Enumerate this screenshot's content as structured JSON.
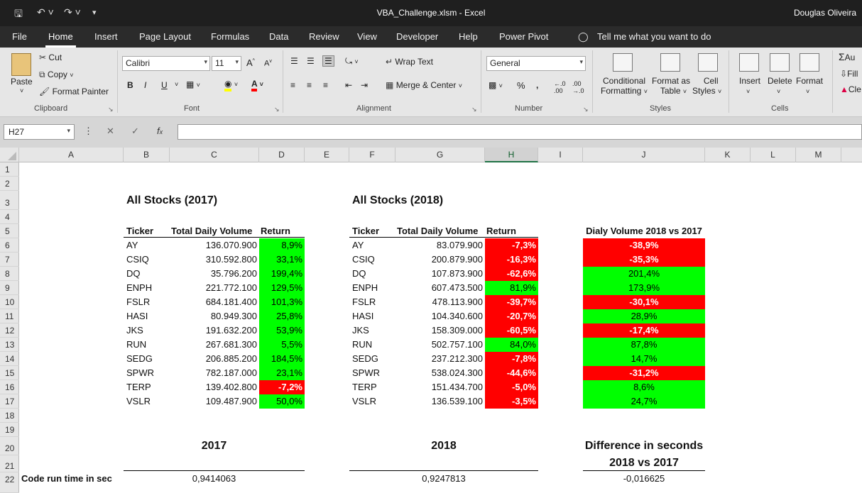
{
  "window": {
    "title": "VBA_Challenge.xlsm  -  Excel",
    "user": "Douglas Oliveira"
  },
  "menu": [
    "File",
    "Home",
    "Insert",
    "Page Layout",
    "Formulas",
    "Data",
    "Review",
    "View",
    "Developer",
    "Help",
    "Power Pivot"
  ],
  "tell_me": "Tell me what you want to do",
  "ribbon": {
    "clipboard": {
      "label": "Clipboard",
      "paste": "Paste",
      "cut": "Cut",
      "copy": "Copy",
      "format_painter": "Format Painter"
    },
    "font": {
      "label": "Font",
      "name": "Calibri",
      "size": "11"
    },
    "alignment": {
      "label": "Alignment",
      "wrap": "Wrap Text",
      "merge": "Merge & Center"
    },
    "number": {
      "label": "Number",
      "format": "General"
    },
    "styles": {
      "label": "Styles",
      "conditional": "Conditional",
      "conditional2": "Formatting",
      "format_as": "Format as",
      "format_as2": "Table",
      "cell": "Cell",
      "cell2": "Styles"
    },
    "cells": {
      "label": "Cells",
      "insert": "Insert",
      "delete": "Delete",
      "format": "Format"
    },
    "editing": {
      "auto": "Au",
      "fill": "Fill",
      "clear": "Cle"
    }
  },
  "namebox": "H27",
  "columns": [
    "A",
    "B",
    "C",
    "D",
    "E",
    "F",
    "G",
    "H",
    "I",
    "J",
    "K",
    "L",
    "M"
  ],
  "rows": [
    "1",
    "2",
    "3",
    "4",
    "5",
    "6",
    "7",
    "8",
    "9",
    "10",
    "11",
    "12",
    "13",
    "14",
    "15",
    "16",
    "17",
    "18",
    "19",
    "20",
    "21",
    "22"
  ],
  "sheet": {
    "title2017": "All Stocks (2017)",
    "title2018": "All Stocks (2018)",
    "headers": {
      "ticker": "Ticker",
      "volume": "Total Daily Volume",
      "return": "Return",
      "diff": "Dialy Volume 2018 vs 2017"
    },
    "rows2017": [
      {
        "ticker": "AY",
        "volume": "136.070.900",
        "ret": "8,9%",
        "pos": true
      },
      {
        "ticker": "CSIQ",
        "volume": "310.592.800",
        "ret": "33,1%",
        "pos": true
      },
      {
        "ticker": "DQ",
        "volume": "35.796.200",
        "ret": "199,4%",
        "pos": true
      },
      {
        "ticker": "ENPH",
        "volume": "221.772.100",
        "ret": "129,5%",
        "pos": true
      },
      {
        "ticker": "FSLR",
        "volume": "684.181.400",
        "ret": "101,3%",
        "pos": true
      },
      {
        "ticker": "HASI",
        "volume": "80.949.300",
        "ret": "25,8%",
        "pos": true
      },
      {
        "ticker": "JKS",
        "volume": "191.632.200",
        "ret": "53,9%",
        "pos": true
      },
      {
        "ticker": "RUN",
        "volume": "267.681.300",
        "ret": "5,5%",
        "pos": true
      },
      {
        "ticker": "SEDG",
        "volume": "206.885.200",
        "ret": "184,5%",
        "pos": true
      },
      {
        "ticker": "SPWR",
        "volume": "782.187.000",
        "ret": "23,1%",
        "pos": true
      },
      {
        "ticker": "TERP",
        "volume": "139.402.800",
        "ret": "-7,2%",
        "pos": false
      },
      {
        "ticker": "VSLR",
        "volume": "109.487.900",
        "ret": "50,0%",
        "pos": true
      }
    ],
    "rows2018": [
      {
        "ticker": "AY",
        "volume": "83.079.900",
        "ret": "-7,3%",
        "pos": false
      },
      {
        "ticker": "CSIQ",
        "volume": "200.879.900",
        "ret": "-16,3%",
        "pos": false
      },
      {
        "ticker": "DQ",
        "volume": "107.873.900",
        "ret": "-62,6%",
        "pos": false
      },
      {
        "ticker": "ENPH",
        "volume": "607.473.500",
        "ret": "81,9%",
        "pos": true
      },
      {
        "ticker": "FSLR",
        "volume": "478.113.900",
        "ret": "-39,7%",
        "pos": false
      },
      {
        "ticker": "HASI",
        "volume": "104.340.600",
        "ret": "-20,7%",
        "pos": false
      },
      {
        "ticker": "JKS",
        "volume": "158.309.000",
        "ret": "-60,5%",
        "pos": false
      },
      {
        "ticker": "RUN",
        "volume": "502.757.100",
        "ret": "84,0%",
        "pos": true
      },
      {
        "ticker": "SEDG",
        "volume": "237.212.300",
        "ret": "-7,8%",
        "pos": false
      },
      {
        "ticker": "SPWR",
        "volume": "538.024.300",
        "ret": "-44,6%",
        "pos": false
      },
      {
        "ticker": "TERP",
        "volume": "151.434.700",
        "ret": "-5,0%",
        "pos": false
      },
      {
        "ticker": "VSLR",
        "volume": "136.539.100",
        "ret": "-3,5%",
        "pos": false
      }
    ],
    "diff": [
      {
        "val": "-38,9%",
        "pos": false
      },
      {
        "val": "-35,3%",
        "pos": false
      },
      {
        "val": "201,4%",
        "pos": true
      },
      {
        "val": "173,9%",
        "pos": true
      },
      {
        "val": "-30,1%",
        "pos": false
      },
      {
        "val": "28,9%",
        "pos": true
      },
      {
        "val": "-17,4%",
        "pos": false
      },
      {
        "val": "87,8%",
        "pos": true
      },
      {
        "val": "14,7%",
        "pos": true
      },
      {
        "val": "-31,2%",
        "pos": false
      },
      {
        "val": "8,6%",
        "pos": true
      },
      {
        "val": "24,7%",
        "pos": true
      }
    ],
    "runtime": {
      "label": "Code run time in sec",
      "h2017": "2017",
      "h2018": "2018",
      "hdiff1": "Difference in seconds",
      "hdiff2": "2018 vs 2017",
      "v2017": "0,9414063",
      "v2018": "0,9247813",
      "vdiff": "-0,016625"
    }
  },
  "colors": {
    "positive": "#00ff00",
    "negative": "#ff0000",
    "accent": "#217346"
  }
}
